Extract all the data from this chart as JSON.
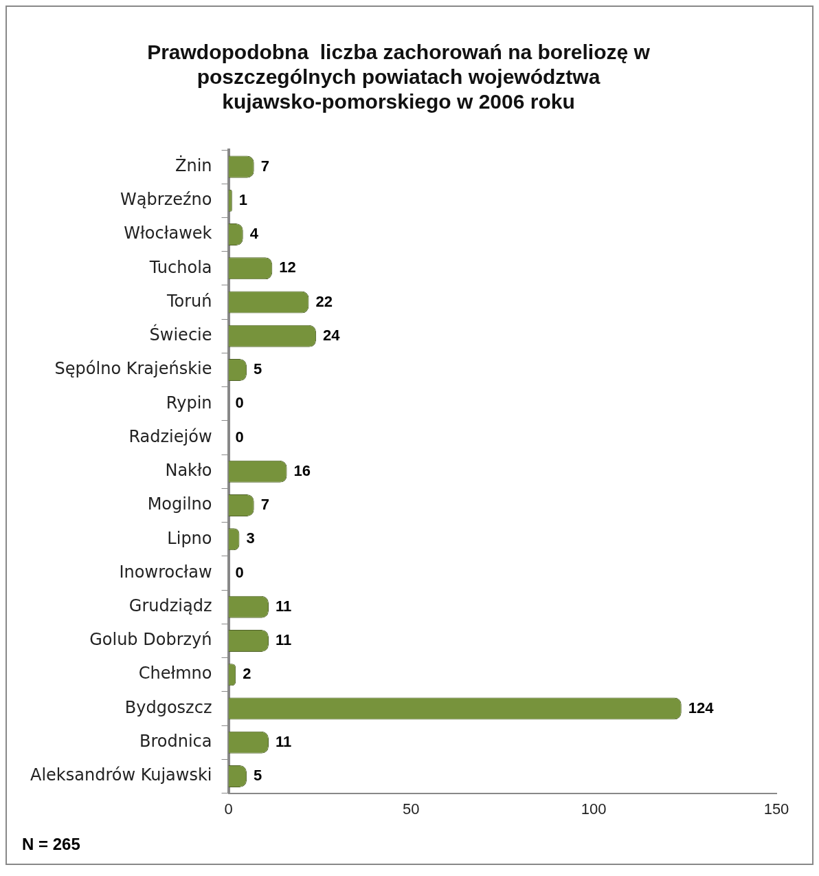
{
  "chart_data": {
    "type": "bar",
    "orientation": "horizontal",
    "title": "Prawdopodobna  liczba zachorowań na boreliozę w\nposzczególnych powiatach województwa\nkujawsko-pomorskiego w 2006 roku",
    "categories": [
      "Żnin",
      "Wąbrzeźno",
      "Włocławek",
      "Tuchola",
      "Toruń",
      "Świecie",
      "Sępólno Krajeńskie",
      "Rypin",
      "Radziejów",
      "Nakło",
      "Mogilno",
      "Lipno",
      "Inowrocław",
      "Grudziądz",
      "Golub Dobrzyń",
      "Chełmno",
      "Bydgoszcz",
      "Brodnica",
      "Aleksandrów Kujawski"
    ],
    "values": [
      7,
      1,
      4,
      12,
      22,
      24,
      5,
      0,
      0,
      16,
      7,
      3,
      0,
      11,
      11,
      2,
      124,
      11,
      5
    ],
    "color": "#77933c",
    "xlim": [
      0,
      150
    ],
    "xticks": [
      0,
      50,
      100,
      150
    ],
    "grid": false,
    "legend": false,
    "data_labels": true,
    "annotations": [
      "N = 265"
    ]
  }
}
